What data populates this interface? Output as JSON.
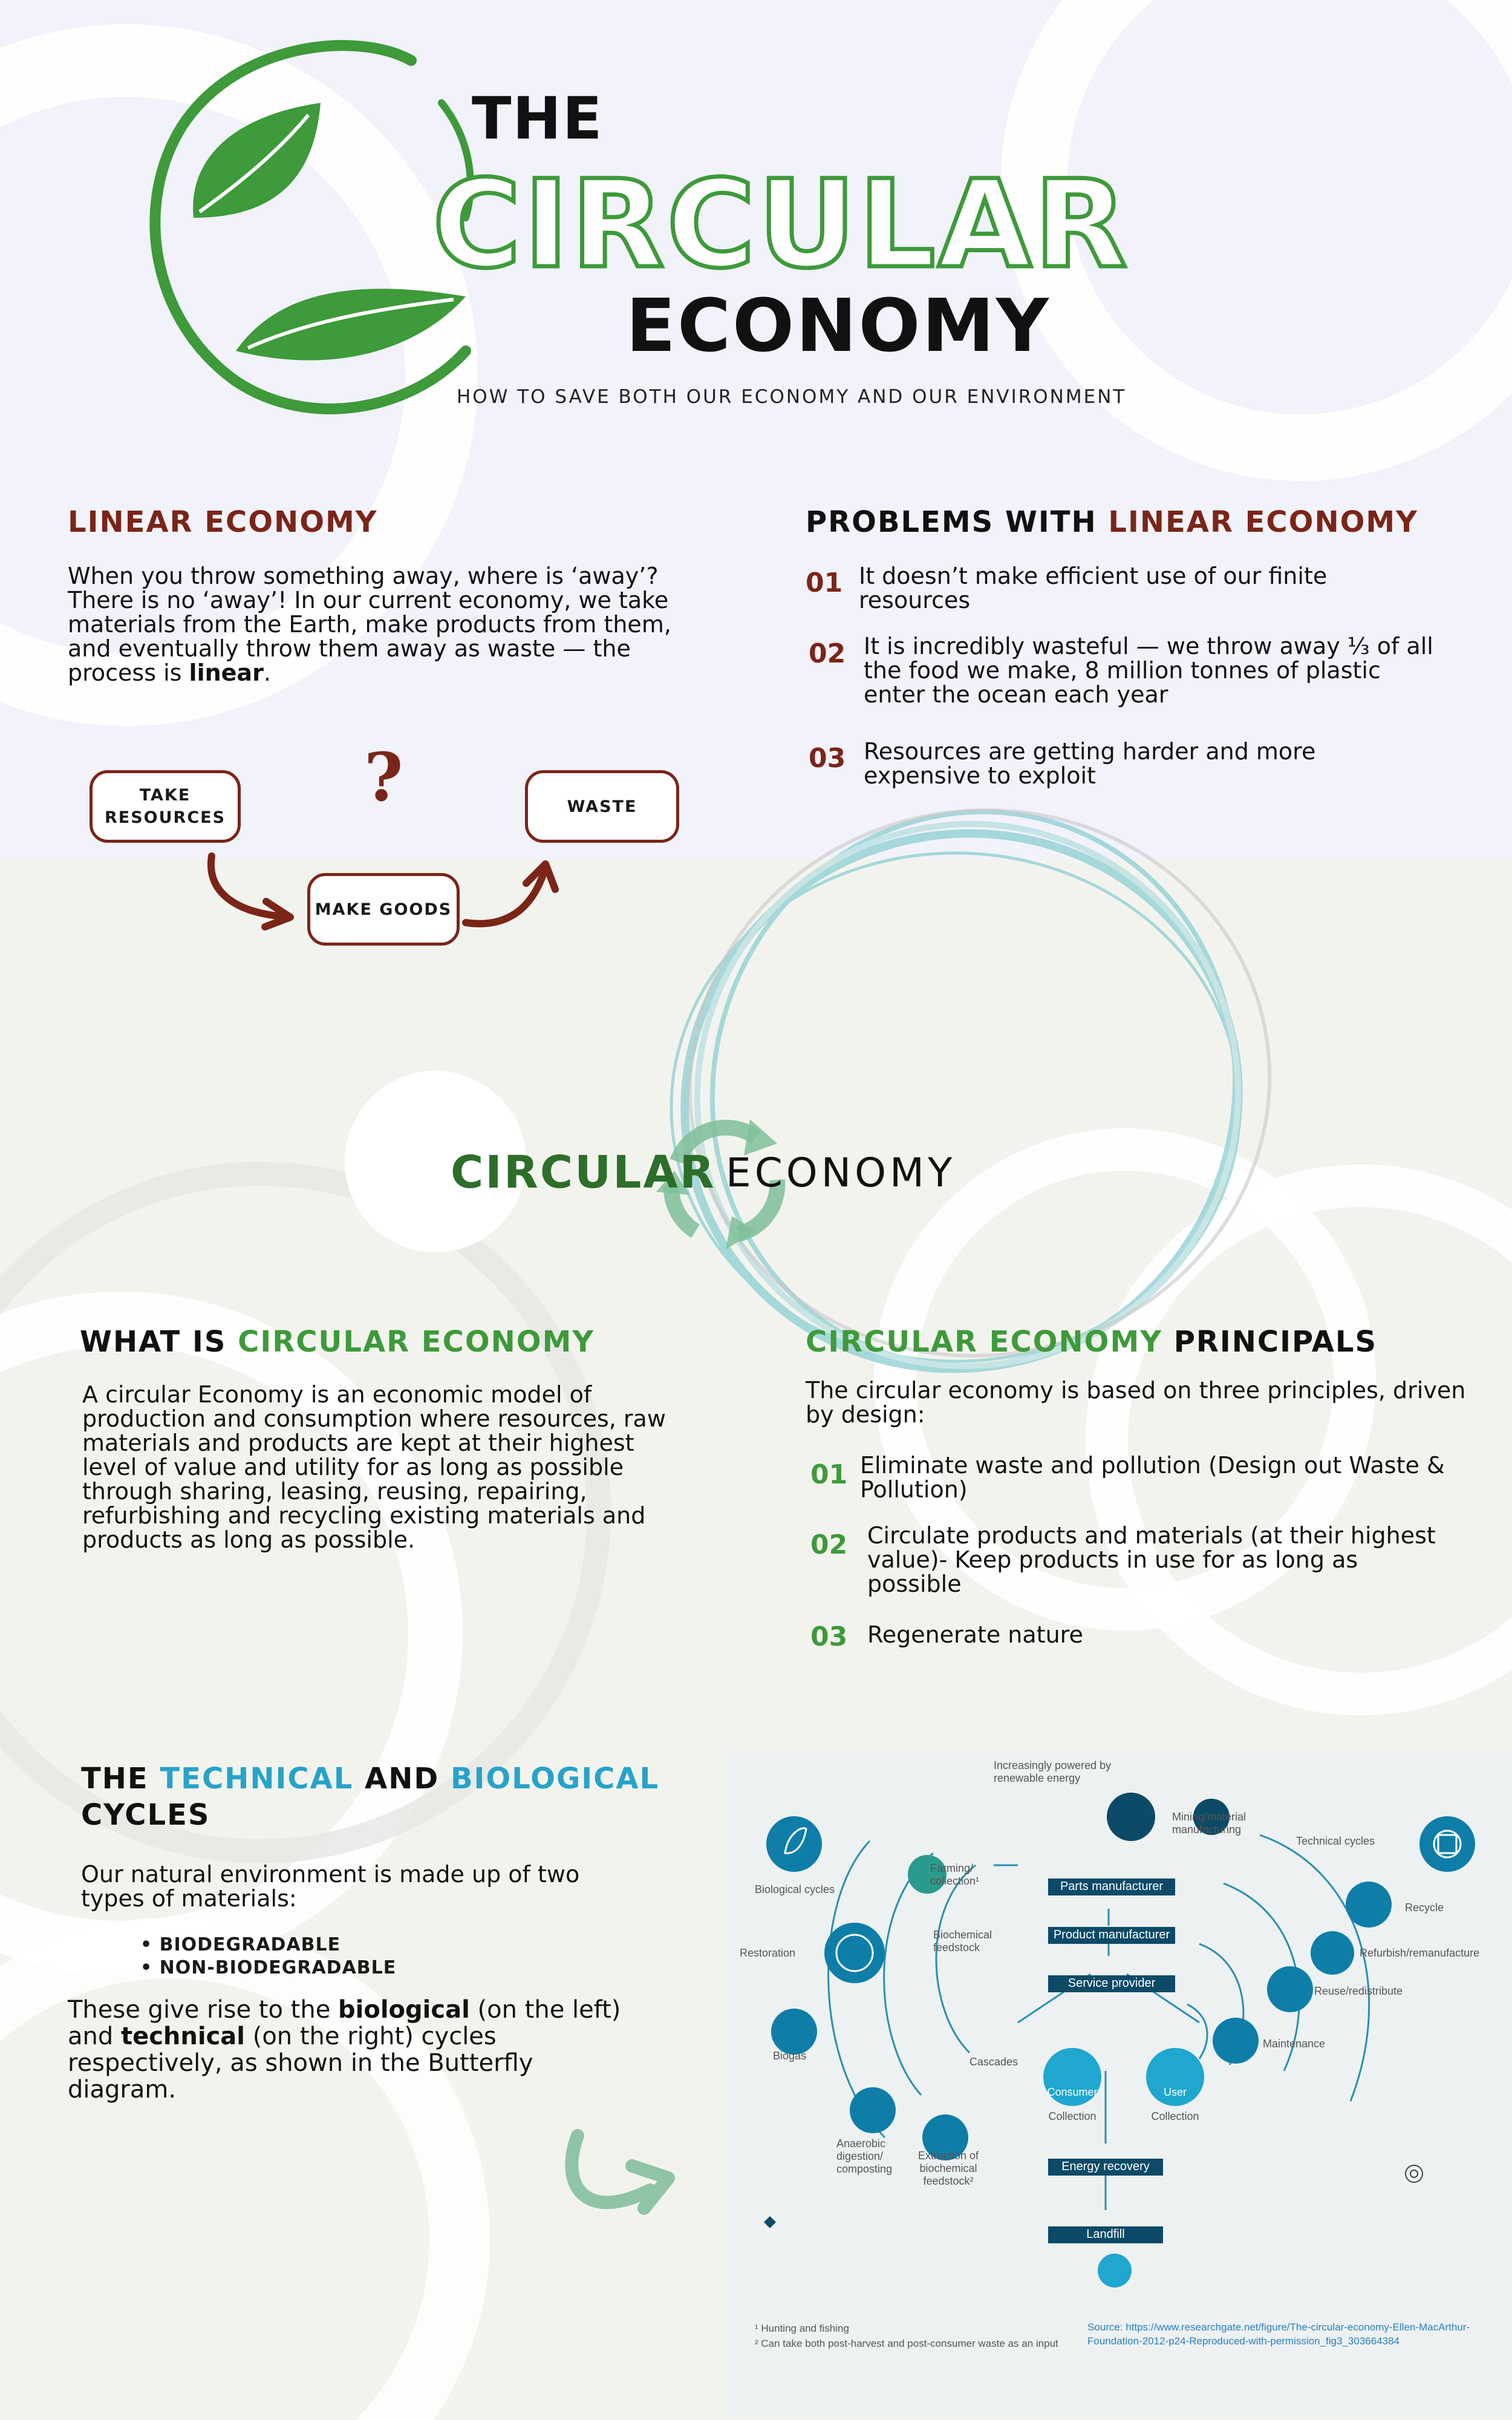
{
  "title": {
    "line1": "THE",
    "line2": "CIRCULAR",
    "line3": "ECONOMY",
    "subtitle": "HOW TO SAVE BOTH OUR ECONOMY AND OUR ENVIRONMENT"
  },
  "colors": {
    "linear_red": "#7a2518",
    "circular_green": "#3e9a3a",
    "cycle_blue": "#27a3c9",
    "diagram_navy": "#0c4a67"
  },
  "linear": {
    "heading": "LINEAR ECONOMY",
    "text_a": "When you throw something away, where is ‘away’? There is no ‘away’! In our current economy, we take materials from the Earth, make products from them, and eventually throw them away as waste — the process is ",
    "text_bold": "linear",
    "text_end": ".",
    "flow": {
      "take": "TAKE RESOURCES",
      "make": "MAKE GOODS",
      "waste": "WASTE",
      "question_mark": "?"
    }
  },
  "problems": {
    "heading_a": "PROBLEMS WITH ",
    "heading_b": "LINEAR ECONOMY",
    "items": [
      {
        "num": "01",
        "text": "It doesn’t make efficient use of our finite resources"
      },
      {
        "num": "02",
        "text": "It is incredibly wasteful — we throw away ⅓ of all the food we make, 8 million tonnes of plastic enter the ocean each year"
      },
      {
        "num": "03",
        "text": "Resources are getting harder and more expensive to exploit"
      }
    ]
  },
  "circular_banner": {
    "word1": "CIRCULAR",
    "word2": "ECONOMY"
  },
  "what_is": {
    "heading_a": "WHAT IS ",
    "heading_b": "CIRCULAR ECONOMY",
    "text": "A circular Economy is an economic model of production and consumption where resources, raw materials and products are kept at their highest level of value and utility for as long as possible through sharing, leasing, reusing, repairing, refurbishing and recycling existing materials and products as long as possible."
  },
  "principles": {
    "heading_a": "CIRCULAR ECONOMY",
    "heading_b": " PRINCIPALS",
    "intro": "The circular economy is based on three principles, driven by design:",
    "items": [
      {
        "num": "01",
        "text": "Eliminate waste and pollution (Design out Waste & Pollution)"
      },
      {
        "num": "02",
        "text": "Circulate products and materials (at their highest value)- Keep products in use for as long as possible"
      },
      {
        "num": "03",
        "text": "Regenerate nature"
      }
    ]
  },
  "cycles": {
    "heading_the": "THE ",
    "heading_technical": "TECHNICAL",
    "heading_and": " AND ",
    "heading_biological": "BIOLOGICAL",
    "heading_line2": "CYCLES",
    "text1": "Our natural environment is made up of two types of materials:",
    "bullets": [
      "BIODEGRADABLE",
      "NON-BIODEGRADABLE"
    ],
    "text2_a": "These give rise to the ",
    "text2_b": "biological",
    "text2_c": " (on the left) and ",
    "text2_d": "technical",
    "text2_e": " (on the right) cycles respectively, as shown in the Butterfly diagram."
  },
  "butterfly": {
    "top_note": "Increasingly powered by renewable energy",
    "mining": "Mining/material manufacturing",
    "technical_cycles": "Technical cycles",
    "biological_cycles": "Biological cycles",
    "farming": "Farming/ collection¹",
    "biochemical": "Biochemical feedstock",
    "restoration": "Restoration",
    "biogas": "Biogas",
    "cascades": "Cascades",
    "anaerobic": "Anaerobic digestion/ composting",
    "extraction": "Extraction of biochemical feedstock²",
    "parts": "Parts manufacturer",
    "product": "Product manufacturer",
    "service": "Service provider",
    "consumer": "Consumer",
    "user": "User",
    "collection1": "Collection",
    "collection2": "Collection",
    "energy": "Energy recovery",
    "landfill": "Landfill",
    "recycle": "Recycle",
    "refurbish": "Refurbish/remanufacture",
    "reuse": "Reuse/redistribute",
    "maintenance": "Maintenance",
    "footnote1": "¹ Hunting and fishing",
    "footnote2": "² Can take both post-harvest and post-consumer waste as an input",
    "source": "Source: https://www.researchgate.net/figure/The-circular-economy-Ellen-MacArthur-Foundation-2012-p24-Reproduced-with-permission_fig3_303664384"
  }
}
